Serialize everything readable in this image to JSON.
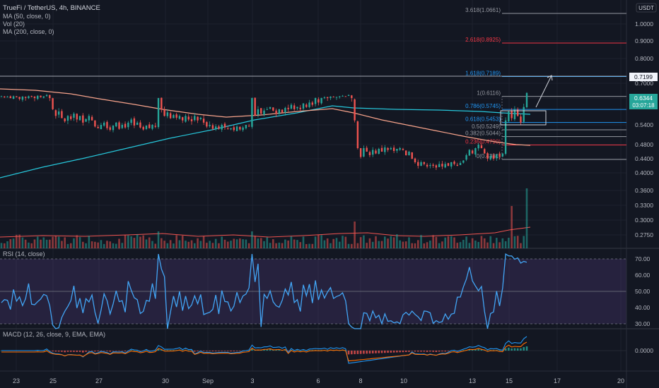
{
  "header": {
    "symbol_line": "TrueFi / TetherUS, 4h, BINANCE",
    "indicators": [
      "MA (50, close, 0)",
      "Vol (20)",
      "MA (200, close, 0)"
    ]
  },
  "currency_badge": "USDT",
  "price_axis_ticks": [
    "1.0000",
    "0.9000",
    "0.8000",
    "0.7000",
    "0.6000",
    "0.5400",
    "0.4800",
    "0.4400",
    "0.4000",
    "0.3600",
    "0.3300",
    "0.3000",
    "0.2750"
  ],
  "price_badges": {
    "target": "0.7199",
    "last_price": "0.6344",
    "countdown": "03:07:18"
  },
  "fib_labels": [
    {
      "label": "3.618(1.0661)",
      "color": "#9598a1"
    },
    {
      "label": "2.618(0.8925)",
      "color": "#f23645"
    },
    {
      "label": "1.618(0.7189)",
      "color": "#2196f3"
    },
    {
      "label": "1(0.6116)",
      "color": "#9598a1"
    },
    {
      "label": "0.786(0.5745)",
      "color": "#2196f3"
    },
    {
      "label": "0.618(0.5453)",
      "color": "#2196f3"
    },
    {
      "label": "0.5(0.5249)",
      "color": "#9598a1"
    },
    {
      "label": "0.382(0.5044)",
      "color": "#9598a1"
    },
    {
      "label": "0.236(0.4790)",
      "color": "#f23645"
    },
    {
      "label": "0(0.4381)",
      "color": "#9598a1"
    }
  ],
  "rsi": {
    "title": "RSI (14, close)",
    "ticks": [
      "70.00",
      "60.00",
      "50.00",
      "40.00",
      "30.00"
    ]
  },
  "macd": {
    "title": "MACD (12, 26, close, 9, EMA, EMA)",
    "tick": "0.0000"
  },
  "time_axis": [
    "23",
    "25",
    "27",
    "30",
    "Sep",
    "3",
    "6",
    "8",
    "10",
    "13",
    "15",
    "17",
    "20"
  ],
  "colors": {
    "background": "#131722",
    "up": "#26a69a",
    "down": "#ef5350",
    "ma50": "#f7a38b",
    "ma200": "#26c6da",
    "rsi_line": "#42a5f5",
    "rsi_band": "#7e57c2",
    "macd_line": "#2196f3",
    "signal_line": "#ff6d00"
  },
  "chart_data": {
    "type": "candlestick",
    "price_series_close": [
      0.612,
      0.605,
      0.61,
      0.6,
      0.612,
      0.605,
      0.598,
      0.61,
      0.602,
      0.612,
      0.608,
      0.6,
      0.615,
      0.605,
      0.612,
      0.62,
      0.6,
      0.575,
      0.56,
      0.57,
      0.555,
      0.548,
      0.56,
      0.553,
      0.565,
      0.552,
      0.56,
      0.545,
      0.553,
      0.56,
      0.55,
      0.535,
      0.53,
      0.54,
      0.545,
      0.53,
      0.525,
      0.538,
      0.545,
      0.528,
      0.54,
      0.532,
      0.545,
      0.552,
      0.538,
      0.545,
      0.532,
      0.526,
      0.538,
      0.53,
      0.54,
      0.534,
      0.6,
      0.575,
      0.56,
      0.568,
      0.555,
      0.562,
      0.556,
      0.56,
      0.55,
      0.56,
      0.552,
      0.548,
      0.56,
      0.55,
      0.556,
      0.545,
      0.535,
      0.54,
      0.528,
      0.535,
      0.528,
      0.54,
      0.532,
      0.528,
      0.53,
      0.524,
      0.535,
      0.526,
      0.532,
      0.54,
      0.535,
      0.6,
      0.56,
      0.575,
      0.565,
      0.572,
      0.575,
      0.58,
      0.572,
      0.565,
      0.575,
      0.568,
      0.578,
      0.575,
      0.585,
      0.575,
      0.58,
      0.575,
      0.588,
      0.58,
      0.59,
      0.585,
      0.6,
      0.59,
      0.6,
      0.605,
      0.6,
      0.61,
      0.605,
      0.608,
      0.612,
      0.615,
      0.612,
      0.62,
      0.6,
      0.55,
      0.47,
      0.445,
      0.47,
      0.46,
      0.45,
      0.465,
      0.455,
      0.468,
      0.46,
      0.472,
      0.465,
      0.47,
      0.462,
      0.468,
      0.47,
      0.465,
      0.45,
      0.46,
      0.44,
      0.43,
      0.42,
      0.43,
      0.425,
      0.418,
      0.422,
      0.42,
      0.415,
      0.425,
      0.418,
      0.425,
      0.42,
      0.43,
      0.425,
      0.42,
      0.428,
      0.435,
      0.45,
      0.465,
      0.455,
      0.47,
      0.48,
      0.47,
      0.455,
      0.44,
      0.448,
      0.44,
      0.452,
      0.445,
      0.455,
      0.55,
      0.57,
      0.555,
      0.575,
      0.56,
      0.545,
      0.58,
      0.6344
    ],
    "ma50": "smoothed moving average overlay",
    "fib_levels": [
      1.0661,
      0.8925,
      0.7189,
      0.6116,
      0.5745,
      0.5453,
      0.5249,
      0.5044,
      0.479,
      0.4381
    ],
    "target_price": 0.7199,
    "last_price": 0.6344
  }
}
